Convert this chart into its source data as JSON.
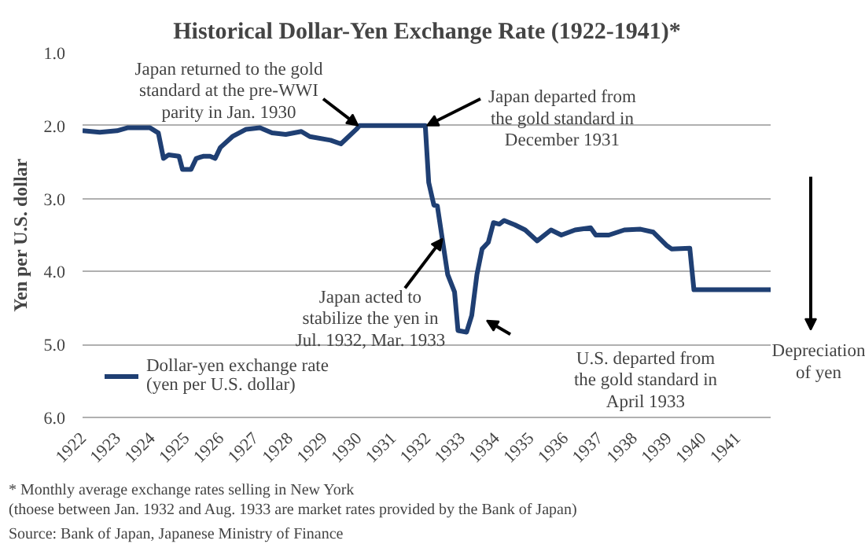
{
  "chart_data": {
    "type": "line",
    "title": "Historical Dollar-Yen Exchange Rate (1922-1941)*",
    "ylabel": "Yen per U.S. dollar",
    "x": [
      1922.0,
      1922.5,
      1923.0,
      1923.3,
      1923.96,
      1924.2,
      1924.35,
      1924.5,
      1924.8,
      1924.9,
      1925.15,
      1925.3,
      1925.5,
      1925.7,
      1925.85,
      1926.0,
      1926.35,
      1926.75,
      1927.15,
      1927.5,
      1927.9,
      1928.35,
      1928.6,
      1929.2,
      1929.5,
      1929.95,
      1930.04,
      1931.95,
      1932.05,
      1932.2,
      1932.3,
      1932.6,
      1932.8,
      1932.9,
      1933.15,
      1933.3,
      1933.45,
      1933.6,
      1933.78,
      1933.93,
      1934.1,
      1934.24,
      1934.55,
      1934.85,
      1935.2,
      1935.6,
      1935.9,
      1936.3,
      1936.75,
      1936.9,
      1937.28,
      1937.73,
      1938.2,
      1938.57,
      1938.95,
      1939.1,
      1939.63,
      1939.75,
      1942.0
    ],
    "series": [
      {
        "name": "Dollar-yen exchange rate\n(yen per U.S. dollar)",
        "color": "#1f3f73",
        "values": [
          2.07,
          2.09,
          2.07,
          2.03,
          2.03,
          2.1,
          2.45,
          2.4,
          2.42,
          2.6,
          2.6,
          2.45,
          2.42,
          2.42,
          2.45,
          2.3,
          2.15,
          2.05,
          2.03,
          2.1,
          2.12,
          2.08,
          2.15,
          2.2,
          2.25,
          2.05,
          2.0,
          2.0,
          2.78,
          3.09,
          3.1,
          4.04,
          4.28,
          4.81,
          4.83,
          4.6,
          4.04,
          3.69,
          3.6,
          3.33,
          3.35,
          3.3,
          3.36,
          3.43,
          3.58,
          3.43,
          3.5,
          3.43,
          3.4,
          3.5,
          3.5,
          3.43,
          3.42,
          3.46,
          3.64,
          3.69,
          3.68,
          4.25,
          4.25
        ]
      }
    ],
    "xlim": [
      1922,
      1942
    ],
    "ylim": [
      6.0,
      1.0
    ],
    "xticks": [
      1922,
      1923,
      1924,
      1925,
      1926,
      1927,
      1928,
      1929,
      1930,
      1931,
      1932,
      1933,
      1934,
      1935,
      1936,
      1937,
      1938,
      1939,
      1940,
      1941
    ],
    "yticks": [
      {
        "value": 1,
        "label": "1.0"
      },
      {
        "value": 2,
        "label": "2.0"
      },
      {
        "value": 3,
        "label": "3.0"
      },
      {
        "value": 4,
        "label": "4.0"
      },
      {
        "value": 5,
        "label": "5.0"
      },
      {
        "value": 6,
        "label": "6.0"
      }
    ],
    "grid": "y",
    "legend": "bottom left",
    "line_style": "solid",
    "marker": "none",
    "annotations": [
      {
        "text": "Japan returned to the gold\nstandard at the pre-WWI\nparity in Jan. 1930",
        "x": 1930.0,
        "y": 2.0
      },
      {
        "text": "Japan departed from\nthe gold standard in\nDecember 1931",
        "x": 1932.0,
        "y": 2.0
      },
      {
        "text": "Japan acted to\nstabilize the yen in\nJul. 1932, Mar. 1933",
        "x": 1932.45,
        "y": 3.55
      },
      "U.S. departed from\nthe gold standard in\nApril 1933",
      "Depreciation\nof yen",
      "* Monthly average exchange rates selling in New York\n(thoese between Jan. 1932 and Aug. 1933 are market rates provided by the Bank of Japan)",
      "Source: Bank of Japan, Japanese Ministry of Finance"
    ]
  }
}
